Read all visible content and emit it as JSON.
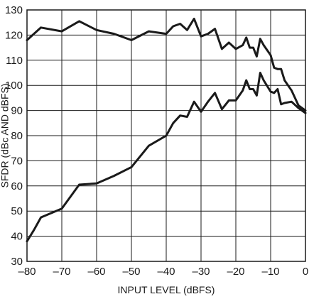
{
  "chart_data": {
    "type": "line",
    "xlabel": "INPUT LEVEL (dBFS)",
    "ylabel": "SFDR (dBc AND dBFS)",
    "xlim": [
      -80,
      0
    ],
    "ylim": [
      30,
      130
    ],
    "x_ticks": [
      -80,
      -70,
      -60,
      -50,
      -40,
      -30,
      -20,
      -10,
      0
    ],
    "x_tick_labels": [
      "–80",
      "–70",
      "–60",
      "–50",
      "–40",
      "–30",
      "–20",
      "–10",
      "0"
    ],
    "y_ticks": [
      30,
      40,
      50,
      60,
      70,
      80,
      90,
      100,
      110,
      120,
      130
    ],
    "y_tick_labels": [
      "30",
      "40",
      "50",
      "60",
      "70",
      "80",
      "90",
      "100",
      "110",
      "120",
      "130"
    ],
    "grid": true,
    "line_color": "#1a1a1a",
    "series": [
      {
        "x": [
          -80,
          -76,
          -70,
          -65,
          -60,
          -55,
          -50,
          -45,
          -40,
          -38,
          -36,
          -34,
          -32,
          -30,
          -28,
          -26,
          -24,
          -22,
          -20,
          -18,
          -17,
          -16,
          -15,
          -14,
          -13,
          -12,
          -10,
          -9,
          -8,
          -7,
          -6,
          -4,
          -2,
          0
        ],
        "y": [
          118,
          123,
          121.5,
          125.5,
          122,
          120.5,
          118,
          121.5,
          120.5,
          123.5,
          124.5,
          122,
          126.5,
          119.5,
          120.5,
          122.5,
          114.5,
          117,
          114.5,
          116,
          119,
          115,
          115,
          111.5,
          118.5,
          116,
          112,
          107,
          106.5,
          106.5,
          102,
          98,
          92,
          90
        ]
      },
      {
        "x": [
          -80,
          -78,
          -76,
          -70,
          -65,
          -60,
          -55,
          -50,
          -45,
          -40,
          -38,
          -36,
          -34,
          -32,
          -30,
          -28,
          -26,
          -24,
          -22,
          -20,
          -18,
          -17,
          -16,
          -15,
          -14,
          -13,
          -12,
          -10,
          -9,
          -8,
          -7,
          -6,
          -4,
          -2,
          0
        ],
        "y": [
          38,
          42.5,
          47.5,
          51,
          60.5,
          61,
          64,
          67.5,
          76,
          80,
          85,
          88,
          87.5,
          93.5,
          89.5,
          93.5,
          97,
          90.5,
          94,
          94,
          98,
          102,
          98.5,
          98.5,
          96,
          105,
          102,
          97.5,
          97,
          98.5,
          92.5,
          93,
          93.5,
          91,
          89
        ]
      }
    ]
  }
}
